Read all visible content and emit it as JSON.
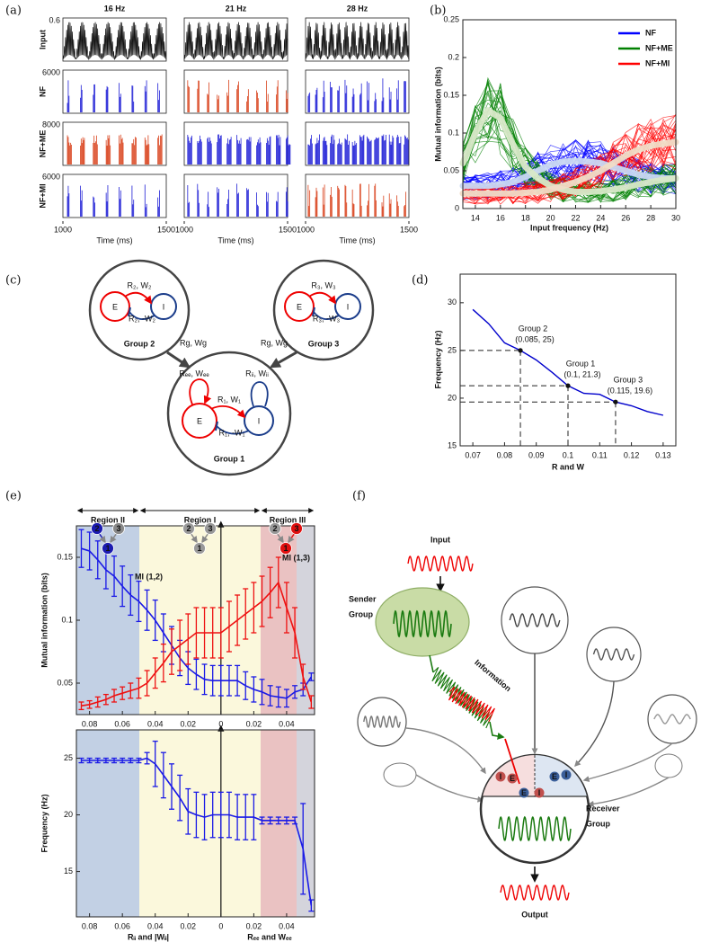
{
  "panel_labels": [
    "(a)",
    "(b)",
    "(c)",
    "(d)",
    "(e)",
    "(f)"
  ],
  "panel_a": {
    "columns": [
      "16 Hz",
      "21 Hz",
      "28 Hz"
    ],
    "rows": [
      {
        "label": "Input",
        "ytick": 0.6,
        "colors": [
          "#111111",
          "#111111",
          "#111111"
        ]
      },
      {
        "label": "NF",
        "ytick": 6000,
        "colors": [
          "#1f1fd6",
          "#d9421c",
          "#1f1fd6"
        ]
      },
      {
        "label": "NF+ME",
        "ytick": 8000,
        "colors": [
          "#d9421c",
          "#1f1fd6",
          "#1f1fd6"
        ]
      },
      {
        "label": "NF+MI",
        "ytick": 6000,
        "colors": [
          "#1f1fd6",
          "#1f1fd6",
          "#d9421c"
        ]
      }
    ],
    "xticks": [
      1000,
      1500
    ],
    "xlabel": "Time (ms)"
  },
  "chart_data": [
    {
      "type": "line",
      "xlabel": "Input frequency (Hz)",
      "ylabel": "Mutual information (bits)",
      "x": [
        13,
        14,
        15,
        16,
        17,
        18,
        19,
        20,
        21,
        22,
        23,
        24,
        25,
        26,
        27,
        28,
        29,
        30
      ],
      "series": [
        {
          "name": "NF",
          "color": "#0000ff",
          "mean_color": "#c9d8f2",
          "values": [
            0.03,
            0.03,
            0.03,
            0.032,
            0.035,
            0.042,
            0.05,
            0.058,
            0.062,
            0.063,
            0.062,
            0.06,
            0.055,
            0.05,
            0.045,
            0.042,
            0.04,
            0.04
          ]
        },
        {
          "name": "NF+ME",
          "color": "#008000",
          "mean_color": "#d8e8c8",
          "values": [
            0.06,
            0.1,
            0.13,
            0.12,
            0.085,
            0.055,
            0.04,
            0.03,
            0.025,
            0.022,
            0.022,
            0.023,
            0.025,
            0.028,
            0.032,
            0.035,
            0.038,
            0.04
          ]
        },
        {
          "name": "NF+MI",
          "color": "#ff0000",
          "mean_color": "#f0dcc6",
          "values": [
            0.02,
            0.02,
            0.02,
            0.02,
            0.02,
            0.021,
            0.022,
            0.025,
            0.03,
            0.035,
            0.042,
            0.05,
            0.06,
            0.07,
            0.078,
            0.083,
            0.086,
            0.088
          ]
        }
      ],
      "xlim": [
        13,
        30
      ],
      "xticks": [
        14,
        16,
        18,
        20,
        22,
        24,
        26,
        28,
        30
      ],
      "ylim": [
        0,
        0.25
      ],
      "yticks": [
        0,
        0.05,
        0.1,
        0.15,
        0.2,
        0.25
      ],
      "legend": "upper right"
    },
    {
      "type": "line",
      "xlabel": "R and W",
      "ylabel": "Frequency (Hz)",
      "x": [
        0.07,
        0.075,
        0.08,
        0.085,
        0.09,
        0.095,
        0.1,
        0.105,
        0.11,
        0.115,
        0.12,
        0.125,
        0.13
      ],
      "values": [
        29.3,
        27.8,
        25.8,
        25,
        24,
        22.7,
        21.3,
        20.5,
        20.4,
        19.6,
        19.2,
        18.6,
        18.2
      ],
      "color": "#0000cc",
      "xlim": [
        0.066,
        0.134
      ],
      "xticks": [
        0.07,
        0.08,
        0.09,
        0.1,
        0.11,
        0.12,
        0.13
      ],
      "ylim": [
        15,
        33
      ],
      "yticks": [
        15,
        20,
        25,
        30
      ],
      "annotations": [
        {
          "text": "Group 2",
          "coords": "(0.085, 25)",
          "x": 0.085,
          "y": 25
        },
        {
          "text": "Group 1",
          "coords": "(0.1, 21.3)",
          "x": 0.1,
          "y": 21.3
        },
        {
          "text": "Group 3",
          "coords": "(0.115, 19.6)",
          "x": 0.115,
          "y": 19.6
        }
      ]
    },
    {
      "type": "errorbar",
      "ylabel": "Mutual information (bits)",
      "x": [
        -0.085,
        -0.08,
        -0.075,
        -0.07,
        -0.065,
        -0.06,
        -0.055,
        -0.05,
        -0.045,
        -0.04,
        -0.035,
        -0.03,
        -0.025,
        -0.02,
        -0.015,
        -0.01,
        -0.005,
        0,
        0.005,
        0.01,
        0.015,
        0.02,
        0.025,
        0.03,
        0.035,
        0.04,
        0.045,
        0.05,
        0.055
      ],
      "series": [
        {
          "name": "MI (1,2)",
          "color": "#1a1ae6",
          "values": [
            0.157,
            0.155,
            0.148,
            0.14,
            0.135,
            0.127,
            0.12,
            0.115,
            0.108,
            0.1,
            0.09,
            0.08,
            0.07,
            0.062,
            0.057,
            0.053,
            0.052,
            0.052,
            0.052,
            0.052,
            0.048,
            0.045,
            0.043,
            0.04,
            0.039,
            0.038,
            0.043,
            0.045,
            0.055
          ],
          "errors": [
            0.015,
            0.015,
            0.015,
            0.015,
            0.016,
            0.016,
            0.016,
            0.016,
            0.016,
            0.016,
            0.015,
            0.015,
            0.014,
            0.013,
            0.012,
            0.012,
            0.012,
            0.012,
            0.012,
            0.012,
            0.011,
            0.01,
            0.01,
            0.008,
            0.008,
            0.007,
            0.005,
            0.005,
            0.003
          ]
        },
        {
          "name": "MI (1,3)",
          "color": "#ee1111",
          "values": [
            0.032,
            0.033,
            0.035,
            0.037,
            0.04,
            0.042,
            0.044,
            0.046,
            0.05,
            0.058,
            0.066,
            0.075,
            0.08,
            0.085,
            0.09,
            0.09,
            0.09,
            0.09,
            0.095,
            0.1,
            0.105,
            0.11,
            0.115,
            0.122,
            0.13,
            0.11,
            0.09,
            0.055,
            0.035
          ],
          "errors": [
            0.003,
            0.003,
            0.004,
            0.004,
            0.005,
            0.005,
            0.006,
            0.008,
            0.01,
            0.012,
            0.015,
            0.018,
            0.02,
            0.02,
            0.02,
            0.02,
            0.02,
            0.02,
            0.02,
            0.02,
            0.02,
            0.02,
            0.02,
            0.02,
            0.02,
            0.02,
            0.02,
            0.01,
            0.005
          ]
        }
      ],
      "xlim": [
        -0.088,
        0.057
      ],
      "xticks": [
        {
          "value": -0.08,
          "label": "0.08"
        },
        {
          "value": -0.06,
          "label": "0.06"
        },
        {
          "value": -0.04,
          "label": "0.04"
        },
        {
          "value": -0.02,
          "label": "0.02"
        },
        0,
        0.02,
        0.04
      ],
      "ylim": [
        0.025,
        0.175
      ],
      "yticks": [
        0.05,
        0.1,
        0.15
      ],
      "regions": [
        "Region II",
        "Region I",
        "Region III"
      ],
      "node_labels": [
        "1",
        "2",
        "3"
      ]
    },
    {
      "type": "errorbar",
      "ylabel": "Frequency (Hz)",
      "xlabel_left": "Rᵢᵢ and  |Wᵢᵢ|",
      "xlabel_right": "Rₑₑ and Wₑₑ",
      "x": [
        -0.085,
        -0.08,
        -0.075,
        -0.07,
        -0.065,
        -0.06,
        -0.055,
        -0.05,
        -0.045,
        -0.04,
        -0.035,
        -0.03,
        -0.025,
        -0.02,
        -0.015,
        -0.01,
        -0.005,
        0,
        0.005,
        0.01,
        0.015,
        0.02,
        0.025,
        0.03,
        0.035,
        0.04,
        0.045,
        0.05,
        0.055
      ],
      "series": [
        {
          "color": "#1a1ae6",
          "values": [
            24.8,
            24.8,
            24.8,
            24.8,
            24.8,
            24.8,
            24.8,
            24.8,
            25,
            24.5,
            23.5,
            22.5,
            21.5,
            20.3,
            20,
            19.8,
            20,
            20,
            20,
            19.8,
            19.8,
            19.8,
            19.5,
            19.5,
            19.5,
            19.5,
            19.5,
            17,
            12
          ],
          "errors": [
            0.2,
            0.2,
            0.2,
            0.2,
            0.2,
            0.2,
            0.2,
            0.2,
            0.5,
            2,
            2,
            2,
            2,
            2,
            2,
            2,
            2,
            2,
            2,
            2,
            2,
            2,
            0.3,
            0.3,
            0.3,
            0.3,
            0.3,
            4,
            0.5
          ]
        }
      ],
      "xlim": [
        -0.088,
        0.057
      ],
      "xticks": [
        {
          "value": -0.08,
          "label": "0.08"
        },
        {
          "value": -0.06,
          "label": "0.06"
        },
        {
          "value": -0.04,
          "label": "0.04"
        },
        {
          "value": -0.02,
          "label": "0.02"
        },
        0,
        0.02,
        0.04
      ],
      "ylim": [
        11,
        27.5
      ],
      "yticks": [
        15,
        20,
        25
      ]
    }
  ],
  "diagram_c": {
    "groups": [
      {
        "title": "Group 2",
        "e": "E",
        "i": "I",
        "excite": "R₂, W₂",
        "inhibit": "R₂, -W₂"
      },
      {
        "title": "Group 3",
        "e": "E",
        "i": "I",
        "excite": "R₃, W₃",
        "inhibit": "R₃, -W₃"
      },
      {
        "title": "Group 1",
        "e": "E",
        "i": "I",
        "excite": "R₁, W₁",
        "inhibit": "R₁, -W₁",
        "self_e": "Rₑₑ, Wₑₑ",
        "self_i": "Rᵢᵢ, Wᵢᵢ"
      }
    ],
    "links": [
      "Rg, Wg",
      "Rg, Wg"
    ]
  },
  "diagram_f": {
    "input": "Input",
    "sender": [
      "Sender",
      "Group"
    ],
    "information": "Information",
    "receiver": [
      "Receiver",
      "Group"
    ],
    "output": "Output",
    "mini_nodes": [
      "I",
      "E",
      "E",
      "I",
      "E",
      "I"
    ]
  }
}
